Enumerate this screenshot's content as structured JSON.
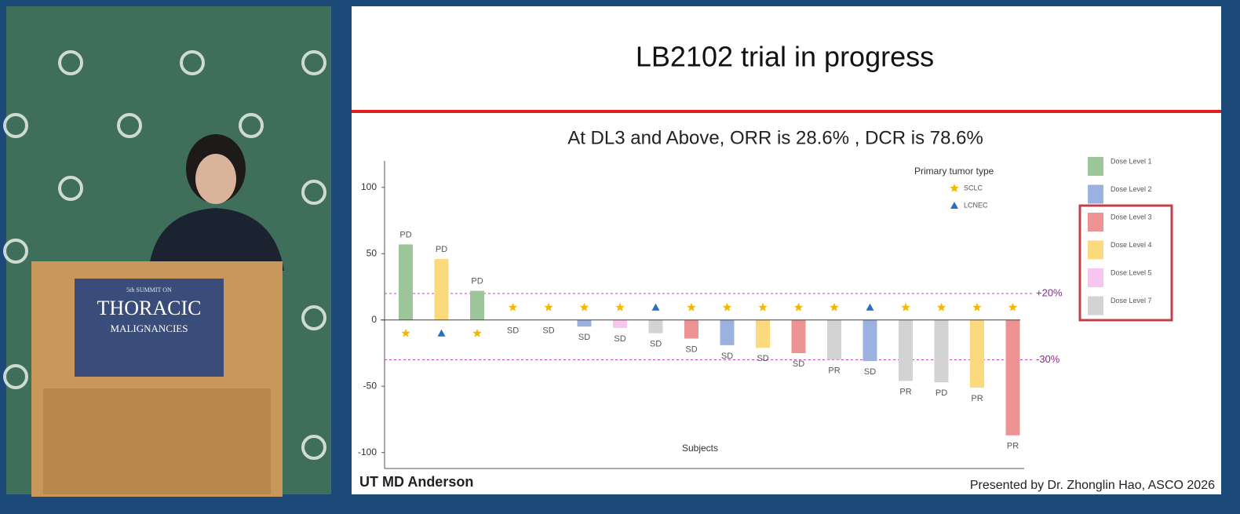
{
  "podium": {
    "line1": "5th SUMMIT ON",
    "line2": "THORACIC",
    "line3": "MALIGNANCIES"
  },
  "slide": {
    "title": "LB2102 trial in progress",
    "logo": "UT MD Anderson",
    "credit": "Presented by Dr. Zhonglin Hao, ASCO 2026"
  },
  "chart_data": {
    "type": "waterfall",
    "title": "At DL3 and Above, ORR is 28.6% , DCR is 78.6%",
    "x_label": "Subjects",
    "values": [
      57,
      46,
      22,
      0,
      0,
      -5,
      -6,
      -10,
      -14,
      -19,
      -21,
      -25,
      -30,
      -31,
      -46,
      -47,
      -51,
      -87
    ],
    "bar_colors": [
      "#9dc59a",
      "#fbd97d",
      "#9dc59a",
      "#d3d3d3",
      "#d3d3d3",
      "#9bb2e0",
      "#f6c6f0",
      "#d3d3d3",
      "#ee9393",
      "#9bb2e0",
      "#fbd97d",
      "#ee9393",
      "#d3d3d3",
      "#9bb2e0",
      "#d3d3d3",
      "#d3d3d3",
      "#fbd97d",
      "#ee9393"
    ],
    "responses": [
      "PD",
      "PD",
      "PD",
      "SD",
      "SD",
      "SD",
      "SD",
      "SD",
      "SD",
      "SD",
      "SD",
      "SD",
      "PR",
      "SD",
      "PR",
      "PD",
      "PR",
      "PR"
    ],
    "tumor_types": [
      "SCLC",
      "LCNEC",
      "SCLC",
      "SCLC",
      "SCLC",
      "SCLC",
      "SCLC",
      "LCNEC",
      "SCLC",
      "SCLC",
      "SCLC",
      "SCLC",
      "SCLC",
      "LCNEC",
      "SCLC",
      "SCLC",
      "SCLC",
      "SCLC"
    ],
    "tumor_legend_title": "Primary tumor type",
    "tumor_legend": [
      {
        "name": "SCLC",
        "color": "#f5b800"
      },
      {
        "name": "LCNEC",
        "color": "#2a6fc0"
      }
    ],
    "dose_levels": [
      {
        "name": "Dose Level 1",
        "color": "#9dc59a"
      },
      {
        "name": "Dose Level 2",
        "color": "#9bb2e0"
      },
      {
        "name": "Dose Level 3",
        "color": "#ee9393"
      },
      {
        "name": "Dose Level 4",
        "color": "#fbd97d"
      },
      {
        "name": "Dose Level 5",
        "color": "#f6c6f0"
      },
      {
        "name": "Dose Level 7",
        "color": "#d3d3d3"
      }
    ],
    "reference_lines": [
      {
        "value": 20,
        "label": "+20%"
      },
      {
        "value": -30,
        "label": "-30%"
      }
    ],
    "ylim": [
      -112,
      120
    ],
    "yticks": [
      100,
      50,
      0,
      -50,
      -100
    ]
  }
}
